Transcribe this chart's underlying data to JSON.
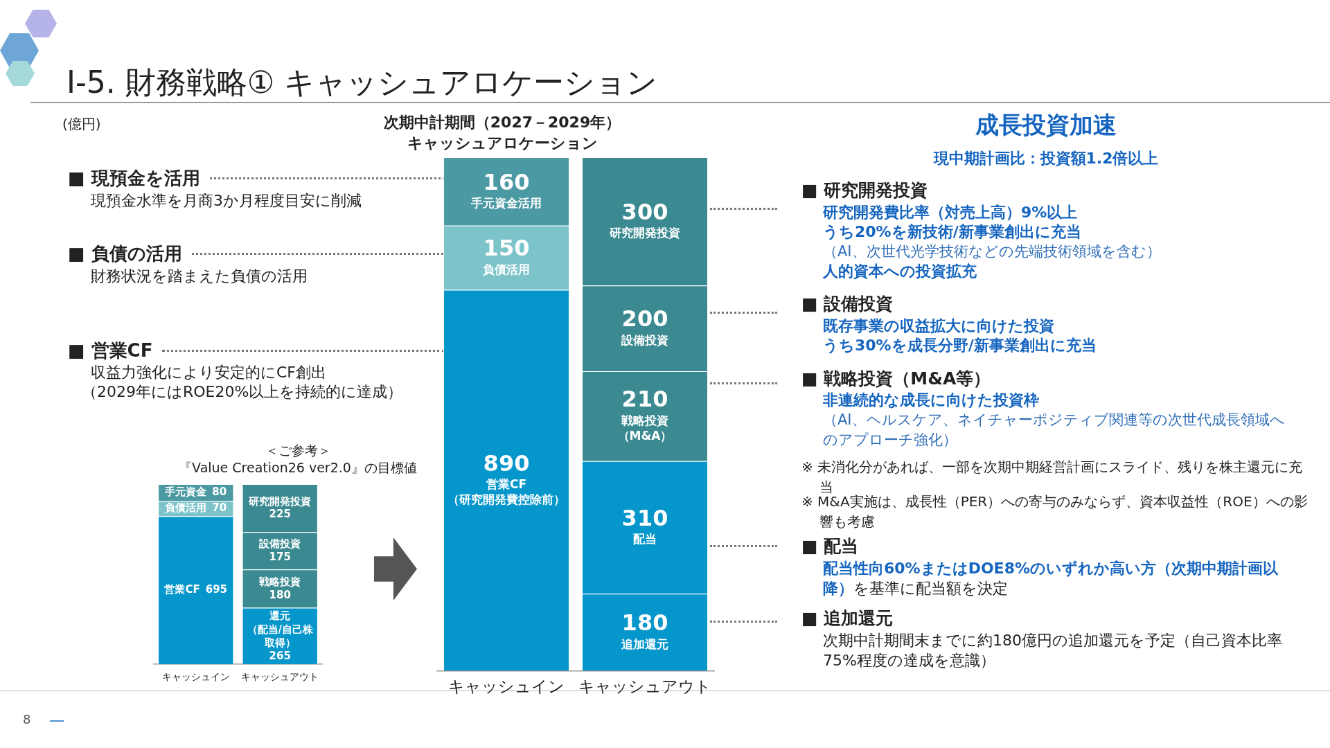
{
  "chart_data": [
    {
      "type": "other",
      "title": "Ⅰ-5. 財務戦略① キャッシュアロケーション",
      "annotations": [
        "■ 現預金を活用",
        "現預金水準を月商3か月程度目安に削減",
        "■ 負債の活用",
        "財務状況を踏まえた負債の活用",
        "■ 営業CF",
        "収益力強化により安定的にCF創出",
        "（2029年にはROE20%以上を持続的に達成）",
        "8"
      ]
    },
    {
      "type": "bar",
      "title": "次期中計期間（2027－2029年）キャッシュアロケーション",
      "ylabel": "(億円)",
      "categories": [
        "キャッシュイン",
        "キャッシュアウト"
      ],
      "stacked": true,
      "data_labels": true,
      "series": [
        {
          "name": "営業CF（研究開発費控除前）",
          "color": "#0596cb",
          "values": [
            890,
            null
          ]
        },
        {
          "name": "負債活用",
          "color": "#7cc3ca",
          "values": [
            150,
            null
          ]
        },
        {
          "name": "手元資金活用",
          "color": "#4b9aa3",
          "values": [
            160,
            null
          ]
        },
        {
          "name": "追加還元",
          "color": "#0596cb",
          "values": [
            null,
            180
          ]
        },
        {
          "name": "配当",
          "color": "#0596cb",
          "values": [
            null,
            310
          ]
        },
        {
          "name": "戦略投資（M&A）",
          "color": "#3b8a91",
          "values": [
            null,
            210
          ]
        },
        {
          "name": "設備投資",
          "color": "#3b8a91",
          "values": [
            null,
            200
          ]
        },
        {
          "name": "研究開発投資",
          "color": "#3b8a91",
          "values": [
            null,
            300
          ]
        }
      ]
    },
    {
      "type": "bar",
      "title": "＜ご参考＞",
      "subtitle": "『Value Creation26 ver2.0』の目標値",
      "categories": [
        "キャッシュイン",
        "キャッシュアウト"
      ],
      "stacked": true,
      "data_labels": true,
      "series": [
        {
          "name": "営業CF",
          "color": "#0596cb",
          "values": [
            695,
            null
          ]
        },
        {
          "name": "負債活用",
          "color": "#7cc3ca",
          "values": [
            70,
            null
          ]
        },
        {
          "name": "手元資金",
          "color": "#4b9aa3",
          "values": [
            80,
            null
          ]
        },
        {
          "name": "還元（配当/自己株取得）",
          "color": "#0596cb",
          "values": [
            null,
            265
          ]
        },
        {
          "name": "戦略投資",
          "color": "#3b8a91",
          "values": [
            null,
            180
          ]
        },
        {
          "name": "設備投資",
          "color": "#3b8a91",
          "values": [
            null,
            175
          ]
        },
        {
          "name": "研究開発投資",
          "color": "#3b8a91",
          "values": [
            null,
            225
          ]
        }
      ]
    },
    {
      "type": "other",
      "title": "成長投資加速",
      "subtitle": "現中期計画比：投資額1.2倍以上",
      "annotations": [
        "■ 研究開発投資",
        "研究開発費比率（対売上高）9%以上",
        "うち20%を新技術/新事業創出に充当",
        "（AI、次世代光学技術などの先端技術領域を含む）",
        "人的資本への投資拡充",
        "■ 設備投資",
        "既存事業の収益拡大に向けた投資",
        "うち30%を成長分野/新事業創出に充当",
        "■ 戦略投資（M&A等）",
        "非連続的な成長に向けた投資枠",
        "（AI、ヘルスケア、ネイチャーポジティブ関連等の次世代成長領域へのアプローチ強化）",
        "※ 未消化分があれば、一部を次期中期経営計画にスライド、残りを株主還元に充当",
        "※ M&A実施は、成長性（PER）への寄与のみならず、資本収益性（ROE）への影響も考慮",
        "■ 配当",
        "配当性向60%またはDOE8%のいずれか高い方（次期中期計画以降）",
        "を基準に配当額を決定",
        "■ 追加還元",
        "次期中計期間末までに約180億円の追加還元を予定（自己資本比率75%程度の達成を意識）"
      ]
    }
  ]
}
